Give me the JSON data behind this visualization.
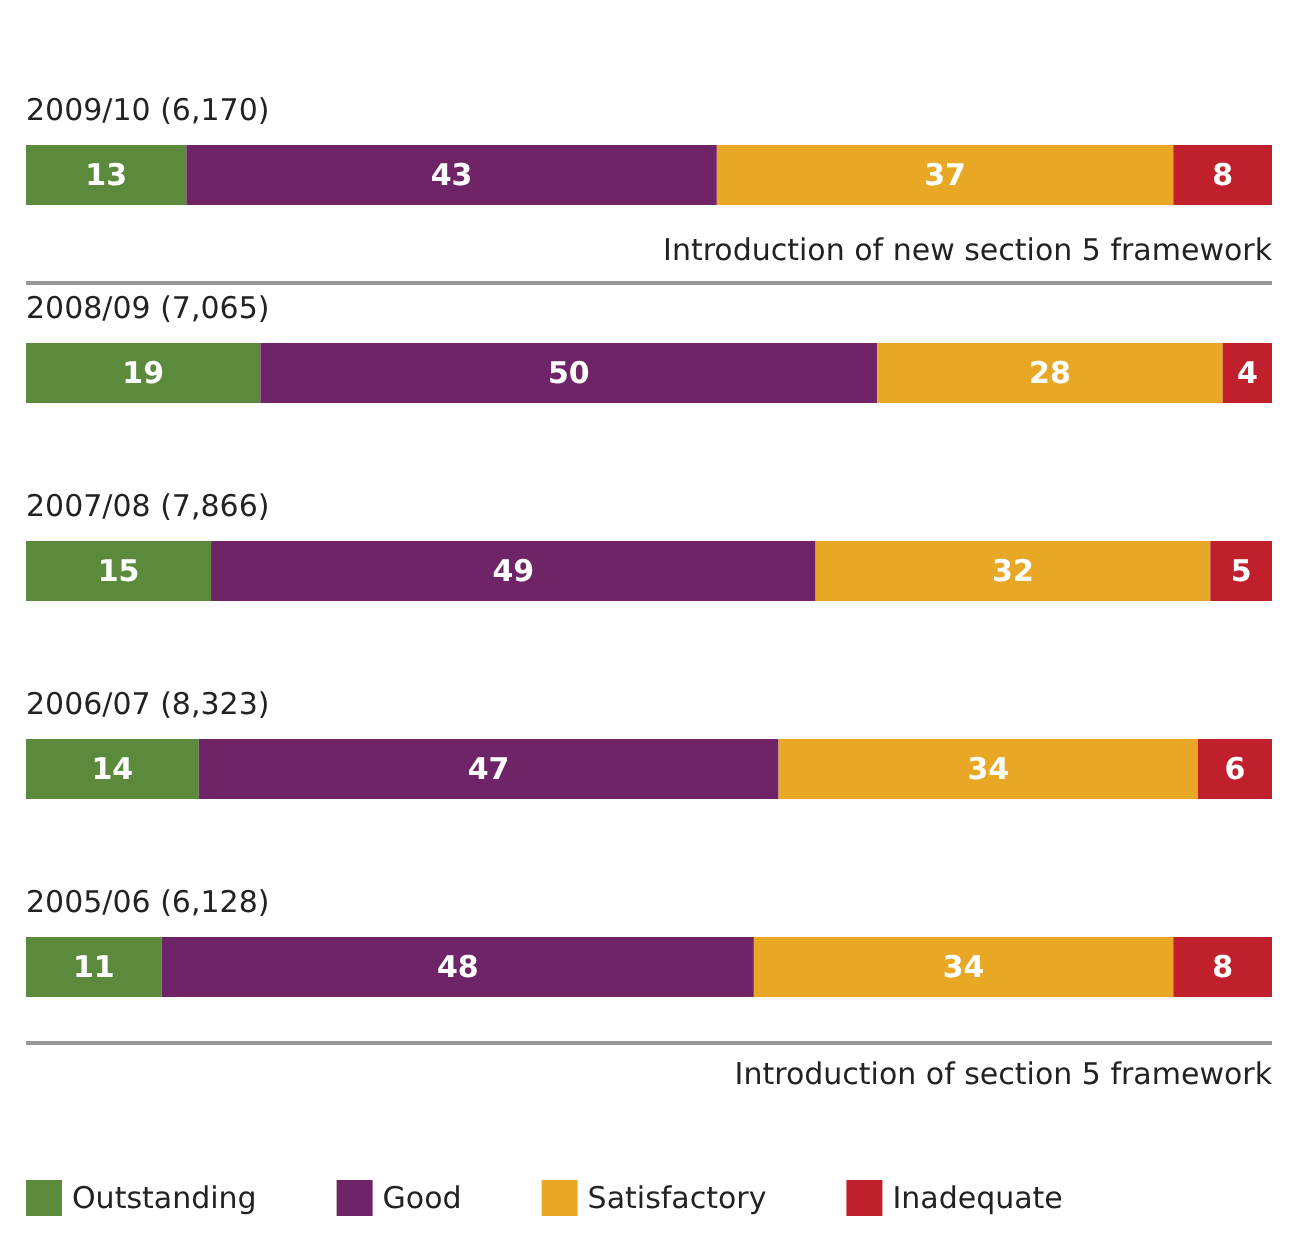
{
  "chart_data": {
    "type": "bar",
    "orientation": "horizontal",
    "stacked": true,
    "data_labels": true,
    "legend": "bottom",
    "categories": [
      "2009/10 (6,170)",
      "2008/09 (7,065)",
      "2007/08 (7,866)",
      "2006/07 (8,323)",
      "2005/06 (6,128)"
    ],
    "series": [
      {
        "name": "Outstanding",
        "color": "#5b8a3c",
        "values": [
          13,
          19,
          15,
          14,
          11
        ]
      },
      {
        "name": "Good",
        "color": "#6e2466",
        "values": [
          43,
          50,
          49,
          47,
          48
        ]
      },
      {
        "name": "Satisfactory",
        "color": "#e8a825",
        "values": [
          37,
          28,
          32,
          34,
          34
        ]
      },
      {
        "name": "Inadequate",
        "color": "#c0202c",
        "values": [
          8,
          4,
          5,
          6,
          8
        ]
      }
    ],
    "annotations": [
      "Introduction of new section 5 framework",
      "Introduction of section 5 framework"
    ]
  }
}
